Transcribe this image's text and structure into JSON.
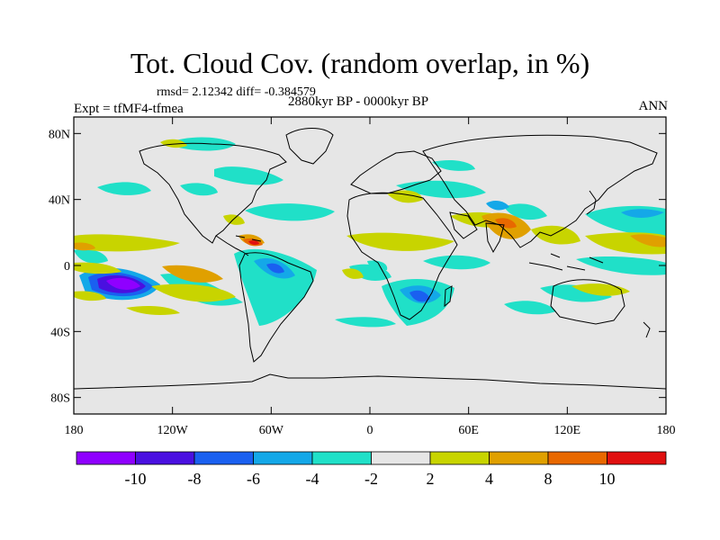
{
  "header": {
    "title": "Tot. Cloud Cov. (random overlap, in %)",
    "stats": "rmsd= 2.12342 diff= -0.384579",
    "left_label": "Expt = tfMF4-tfmea",
    "center_label": "2880kyr BP - 0000kyr BP",
    "right_label": "ANN"
  },
  "axes": {
    "y_ticks": [
      {
        "label": "80N",
        "lat": 80
      },
      {
        "label": "40N",
        "lat": 40
      },
      {
        "label": "0",
        "lat": 0
      },
      {
        "label": "40S",
        "lat": -40
      },
      {
        "label": "80S",
        "lat": -80
      }
    ],
    "x_ticks": [
      {
        "label": "180",
        "lon": -180
      },
      {
        "label": "120W",
        "lon": -120
      },
      {
        "label": "60W",
        "lon": -60
      },
      {
        "label": "0",
        "lon": 0
      },
      {
        "label": "60E",
        "lon": 60
      },
      {
        "label": "120E",
        "lon": 120
      },
      {
        "label": "180",
        "lon": 180
      }
    ]
  },
  "colorbar": {
    "colors": [
      "#8f00ff",
      "#4a10e0",
      "#1a60f0",
      "#14a8e8",
      "#20e0c8",
      "#e6e6e6",
      "#c8d400",
      "#e0a000",
      "#e86800",
      "#e01010"
    ],
    "labels": [
      {
        "label": "-10",
        "boundary": 1
      },
      {
        "label": "-8",
        "boundary": 2
      },
      {
        "label": "-6",
        "boundary": 3
      },
      {
        "label": "-4",
        "boundary": 4
      },
      {
        "label": "-2",
        "boundary": 5
      },
      {
        "label": "2",
        "boundary": 6
      },
      {
        "label": "4",
        "boundary": 7
      },
      {
        "label": "8",
        "boundary": 8
      },
      {
        "label": "10",
        "boundary": 9
      }
    ]
  },
  "colors": {
    "ocean_bg": "#e6e6e6",
    "coast": "#000000"
  }
}
